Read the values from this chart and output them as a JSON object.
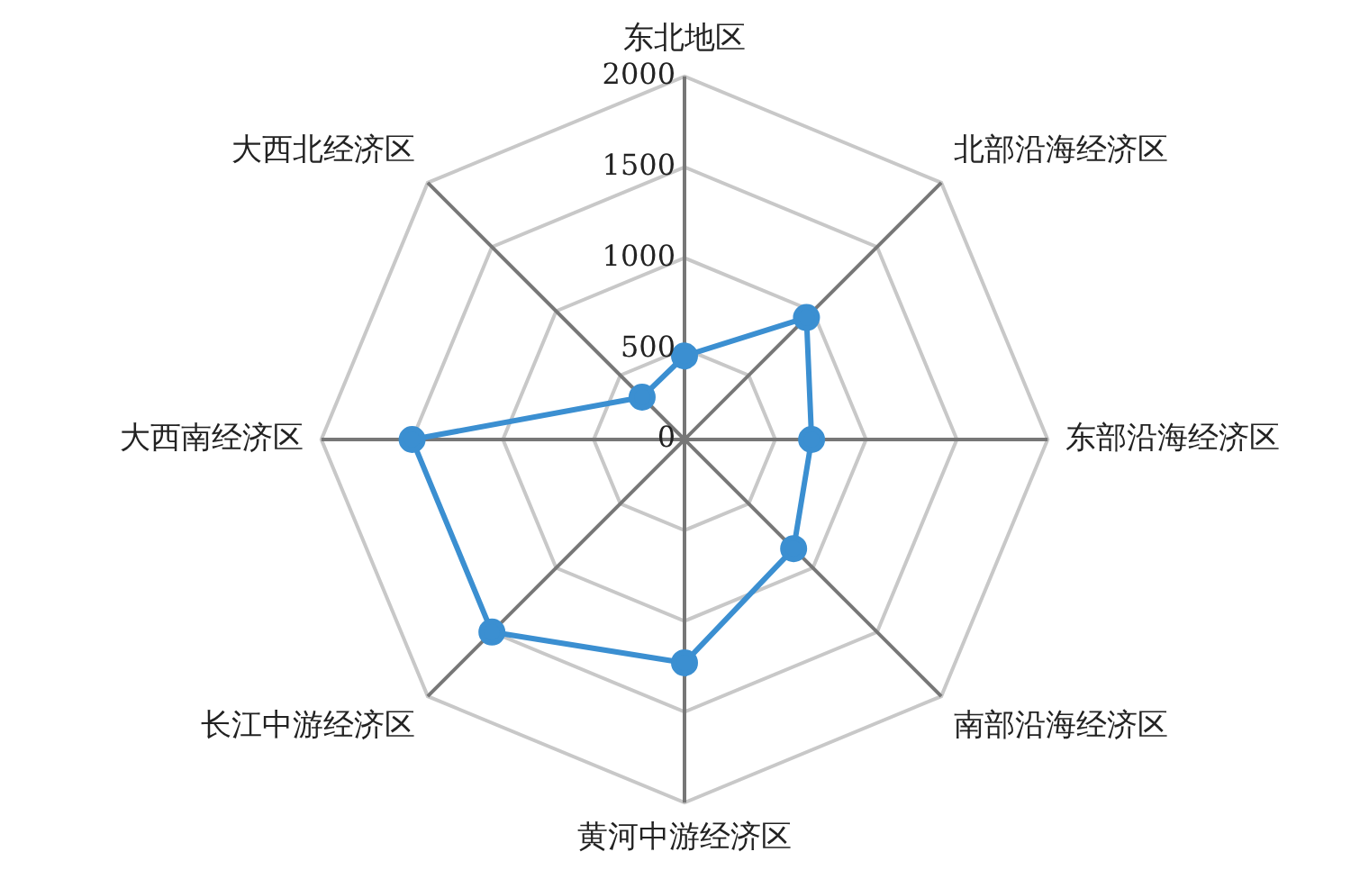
{
  "chart_data": {
    "type": "radar",
    "categories": [
      "东北地区",
      "北部沿海经济区",
      "东部沿海经济区",
      "南部沿海经济区",
      "黄河中游经济区",
      "长江中游经济区",
      "大西南经济区",
      "大西北经济区"
    ],
    "series": [
      {
        "color": "#3b8fd1",
        "values": [
          460,
          950,
          700,
          850,
          1230,
          1500,
          1500,
          330
        ]
      }
    ],
    "ylim": [
      0,
      2000
    ],
    "yticks": [
      0,
      500,
      1000,
      1500,
      2000
    ],
    "grid": true,
    "legend": false,
    "marker": "circle"
  }
}
